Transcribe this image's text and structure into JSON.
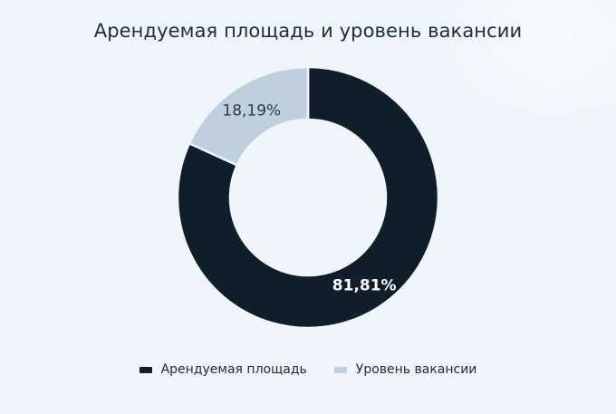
{
  "chart_data": {
    "type": "pie",
    "subtype": "donut",
    "title": "Арендуемая площадь и уровень вакансии",
    "categories": [
      "Арендуемая площадь",
      "Уровень вакансии"
    ],
    "values": [
      81.81,
      18.19
    ],
    "labels": [
      "81,81%",
      "18,19%"
    ],
    "colors": [
      "#101e2a",
      "#c0cfdd"
    ],
    "label_colors": [
      "#ffffff",
      "#1e3a52"
    ],
    "start_angle_deg": 0,
    "direction": "clockwise",
    "legend_position": "bottom",
    "grid": false
  },
  "title": "Арендуемая площадь и уровень вакансии",
  "legend": {
    "items": [
      {
        "label": "Арендуемая площадь",
        "color": "#101e2a"
      },
      {
        "label": "Уровень вакансии",
        "color": "#c0cfdd"
      }
    ]
  },
  "slices": {
    "leased": {
      "label": "81,81%"
    },
    "vacancy": {
      "label": "18,19%"
    }
  },
  "colors": {
    "background": "#f0f5fb",
    "text": "#1b2e3e"
  }
}
